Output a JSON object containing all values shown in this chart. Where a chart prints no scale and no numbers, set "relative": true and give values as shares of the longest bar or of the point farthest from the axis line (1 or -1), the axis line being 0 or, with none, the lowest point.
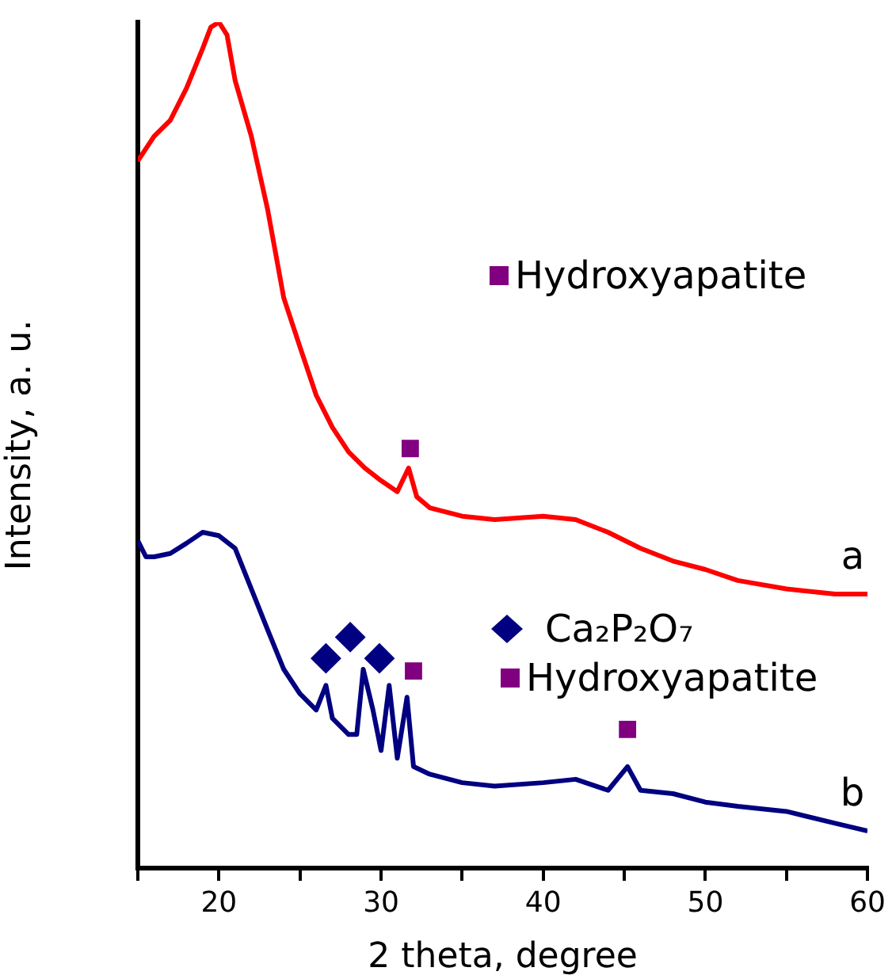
{
  "chart_data": {
    "type": "line",
    "xlabel": "2 theta, degree",
    "ylabel": "Intensity, a. u.",
    "relative": true,
    "xlim": [
      15,
      60
    ],
    "xticks": [
      {
        "value": 15,
        "label": null
      },
      20,
      {
        "value": 25,
        "label": null
      },
      30,
      {
        "value": 35,
        "label": null
      },
      40,
      {
        "value": 45,
        "label": null
      },
      50,
      {
        "value": 55,
        "label": null
      },
      60
    ],
    "tick_labels": "x",
    "grid": false,
    "legend": "right",
    "marker": "none",
    "line_style": "solid",
    "series": [
      {
        "name": "a",
        "color": "#ff0000",
        "x": [
          15,
          16,
          17,
          18,
          19,
          19.5,
          20,
          20.5,
          21,
          22,
          23,
          24,
          25,
          26,
          27,
          28,
          29,
          30,
          31,
          31.7,
          32.2,
          33,
          35,
          37,
          40,
          42,
          44,
          46,
          48,
          50,
          52,
          55,
          58,
          60
        ],
        "values": [
          0.836,
          0.865,
          0.884,
          0.922,
          0.969,
          0.994,
          1,
          0.985,
          0.931,
          0.865,
          0.779,
          0.674,
          0.616,
          0.559,
          0.521,
          0.492,
          0.473,
          0.458,
          0.445,
          0.473,
          0.439,
          0.426,
          0.416,
          0.412,
          0.416,
          0.412,
          0.397,
          0.378,
          0.363,
          0.353,
          0.34,
          0.33,
          0.324,
          0.324
        ]
      },
      {
        "name": "b",
        "color": "#000080",
        "x": [
          15,
          15.5,
          16,
          17,
          18,
          19,
          20,
          21,
          22,
          23,
          24,
          25,
          26,
          26.6,
          27,
          28,
          28.5,
          28.9,
          29.5,
          30,
          30.5,
          31,
          31.6,
          32,
          33,
          35,
          37,
          40,
          42,
          44,
          45.2,
          46,
          48,
          50,
          52,
          55,
          58,
          60
        ],
        "values": [
          0.387,
          0.368,
          0.368,
          0.372,
          0.384,
          0.397,
          0.393,
          0.378,
          0.33,
          0.282,
          0.235,
          0.206,
          0.187,
          0.216,
          0.177,
          0.158,
          0.158,
          0.235,
          0.187,
          0.139,
          0.216,
          0.13,
          0.202,
          0.12,
          0.111,
          0.101,
          0.097,
          0.101,
          0.105,
          0.092,
          0.12,
          0.092,
          0.088,
          0.078,
          0.073,
          0.067,
          0.053,
          0.044
        ]
      },
      {
        "name": "Hydroxyapatite",
        "type": "scatter",
        "marker": "square",
        "color": "#800080",
        "x": [
          31.8
        ],
        "values": [
          0.496
        ]
      },
      {
        "name": "Ca₂P₂O₇",
        "type": "scatter",
        "marker": "diamond",
        "color": "#000080",
        "x": [
          26.6,
          28.1,
          29.9
        ],
        "values": [
          0.248,
          0.273,
          0.248
        ]
      },
      {
        "name": "Hydroxyapatite",
        "type": "scatter",
        "marker": "square",
        "color": "#800080",
        "x": [
          32,
          45.2
        ],
        "values": [
          0.233,
          0.164
        ]
      }
    ]
  }
}
